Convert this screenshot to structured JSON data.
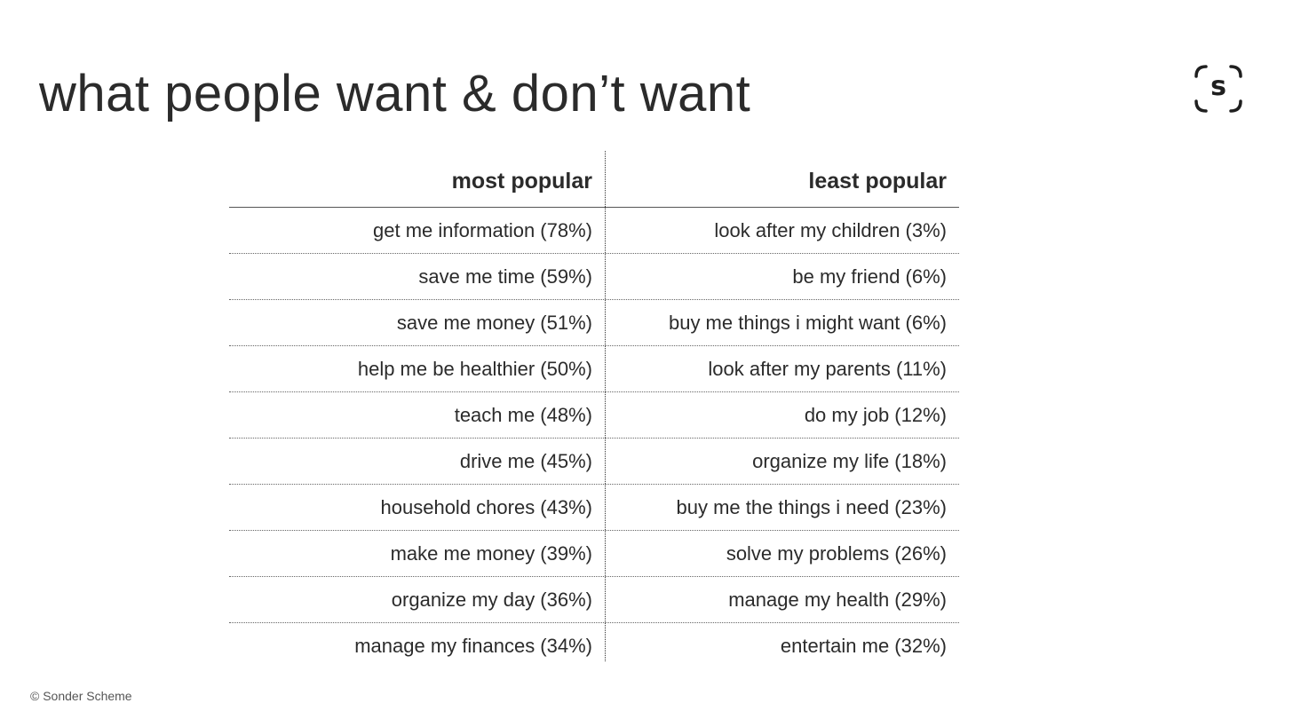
{
  "title": "what people want & don’t want",
  "logo": {
    "letter": "s",
    "icon": "sonder-scheme-logo-icon"
  },
  "table": {
    "headers": {
      "left": "most popular",
      "right": "least popular"
    },
    "rows": [
      {
        "left": "get me information (78%)",
        "right": "look after my children (3%)"
      },
      {
        "left": "save me time (59%)",
        "right": "be my friend (6%)"
      },
      {
        "left": "save me money (51%)",
        "right": "buy me things i might want (6%)"
      },
      {
        "left": "help me be healthier (50%)",
        "right": "look after my parents (11%)"
      },
      {
        "left": "teach me (48%)",
        "right": "do my job (12%)"
      },
      {
        "left": "drive me (45%)",
        "right": "organize my life (18%)"
      },
      {
        "left": "household chores (43%)",
        "right": "buy me the things i need (23%)"
      },
      {
        "left": "make me money (39%)",
        "right": "solve my problems (26%)"
      },
      {
        "left": "organize my day (36%)",
        "right": "manage my health (29%)"
      },
      {
        "left": "manage my finances (34%)",
        "right": "entertain me (32%)"
      }
    ]
  },
  "footer": "© Sonder Scheme"
}
